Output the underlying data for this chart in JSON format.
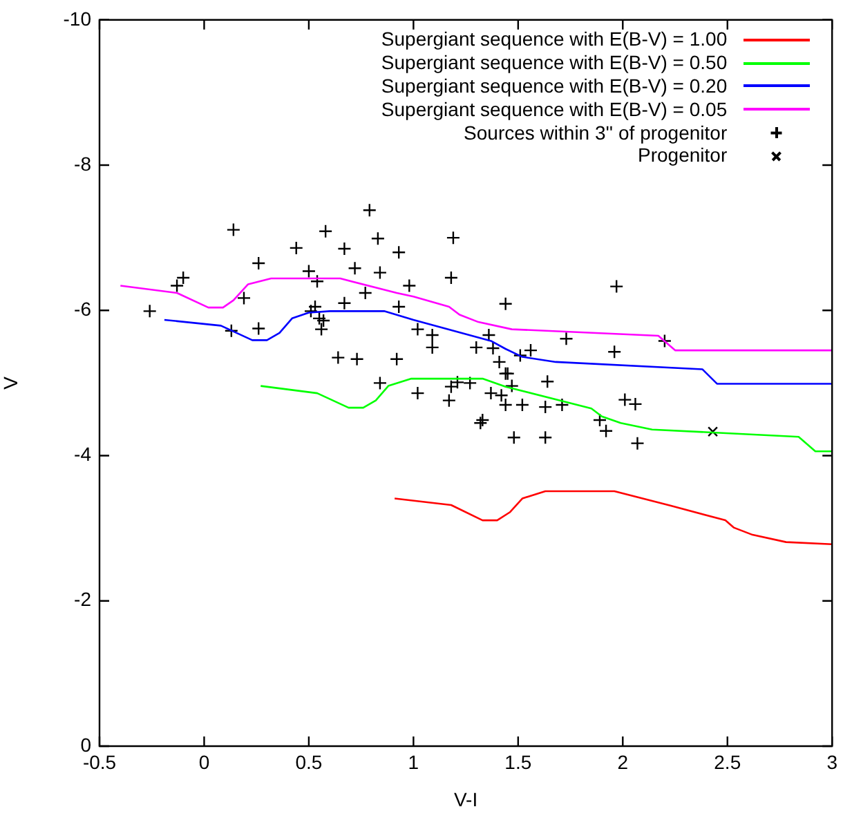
{
  "chart_data": {
    "type": "line",
    "xlabel": "V-I",
    "ylabel": "V",
    "xlim": [
      -0.5,
      3
    ],
    "xticks": [
      -0.5,
      0,
      0.5,
      1,
      1.5,
      2,
      2.5,
      3
    ],
    "ylim": [
      0,
      -10
    ],
    "yticks": [
      0,
      -2,
      -4,
      -6,
      -8,
      -10
    ],
    "grid": false,
    "legend": "top right",
    "series": [
      {
        "name": "Supergiant sequence with E(B-V) = 1.00",
        "type": "line",
        "marker": "none",
        "color": "#ff0000",
        "x": [
          0.91,
          1.18,
          1.33,
          1.4,
          1.46,
          1.52,
          1.63,
          1.96,
          2.23,
          2.49,
          2.53,
          2.62,
          2.78,
          3.0
        ],
        "values": [
          -3.41,
          -3.32,
          -3.11,
          -3.11,
          -3.22,
          -3.41,
          -3.51,
          -3.51,
          -3.31,
          -3.11,
          -3.01,
          -2.91,
          -2.81,
          -2.78
        ]
      },
      {
        "name": "Supergiant sequence with E(B-V) = 0.50",
        "type": "line",
        "marker": "none",
        "color": "#00ff00",
        "x": [
          0.27,
          0.54,
          0.69,
          0.76,
          0.82,
          0.88,
          0.99,
          1.33,
          1.44,
          1.85,
          1.9,
          1.99,
          2.14,
          2.84,
          2.92,
          3.0
        ],
        "values": [
          -4.96,
          -4.86,
          -4.66,
          -4.66,
          -4.76,
          -4.96,
          -5.06,
          -5.06,
          -4.95,
          -4.65,
          -4.54,
          -4.45,
          -4.36,
          -4.26,
          -4.06,
          -4.06
        ]
      },
      {
        "name": "Supergiant sequence with E(B-V) = 0.20",
        "type": "line",
        "marker": "none",
        "color": "#0000ff",
        "x": [
          -0.19,
          0.08,
          0.23,
          0.3,
          0.36,
          0.42,
          0.5,
          0.6,
          0.86,
          1.0,
          1.37,
          1.44,
          1.52,
          1.68,
          2.38,
          2.45,
          3.0
        ],
        "values": [
          -5.87,
          -5.79,
          -5.59,
          -5.59,
          -5.69,
          -5.89,
          -5.97,
          -5.99,
          -5.99,
          -5.87,
          -5.58,
          -5.47,
          -5.36,
          -5.29,
          -5.19,
          -4.99,
          -4.99
        ]
      },
      {
        "name": "Supergiant sequence with E(B-V) = 0.05",
        "type": "line",
        "marker": "none",
        "color": "#ff00ff",
        "x": [
          -0.4,
          -0.13,
          0.02,
          0.09,
          0.14,
          0.21,
          0.32,
          0.65,
          0.92,
          1.0,
          1.17,
          1.22,
          1.31,
          1.47,
          2.17,
          2.25,
          3.0
        ],
        "values": [
          -6.34,
          -6.24,
          -6.04,
          -6.04,
          -6.14,
          -6.36,
          -6.44,
          -6.44,
          -6.24,
          -6.19,
          -6.05,
          -5.94,
          -5.84,
          -5.74,
          -5.65,
          -5.45,
          -5.45
        ]
      },
      {
        "name": "Sources within 3'' of progenitor",
        "type": "scatter",
        "marker": "cross",
        "color": "#000000",
        "x": [
          -0.26,
          -0.13,
          -0.1,
          0.14,
          0.19,
          0.13,
          0.26,
          0.26,
          0.44,
          0.5,
          0.54,
          0.53,
          0.51,
          0.55,
          0.57,
          0.56,
          0.58,
          0.67,
          0.72,
          0.67,
          0.77,
          0.79,
          0.83,
          0.84,
          0.93,
          0.98,
          0.93,
          0.64,
          0.73,
          0.92,
          0.84,
          1.02,
          1.02,
          1.09,
          1.09,
          1.19,
          1.18,
          1.18,
          1.21,
          1.27,
          1.17,
          1.33,
          1.32,
          1.36,
          1.3,
          1.38,
          1.41,
          1.44,
          1.45,
          1.47,
          1.37,
          1.42,
          1.44,
          1.52,
          1.51,
          1.56,
          1.44,
          1.48,
          1.63,
          1.63,
          1.64,
          1.71,
          1.73,
          1.97,
          1.96,
          2.01,
          2.06,
          1.89,
          1.92,
          2.07,
          2.2
        ],
        "values": [
          -5.99,
          -6.34,
          -6.45,
          -7.11,
          -6.17,
          -5.72,
          -6.65,
          -5.75,
          -6.86,
          -6.54,
          -6.4,
          -6.05,
          -5.99,
          -5.89,
          -5.86,
          -5.74,
          -7.09,
          -6.85,
          -6.58,
          -6.1,
          -6.24,
          -7.38,
          -6.99,
          -6.52,
          -6.8,
          -6.34,
          -6.05,
          -5.35,
          -5.33,
          -5.33,
          -5.0,
          -4.86,
          -5.74,
          -5.66,
          -5.49,
          -7.0,
          -6.45,
          -4.95,
          -5.01,
          -5.0,
          -4.76,
          -4.49,
          -4.45,
          -5.66,
          -5.49,
          -5.48,
          -5.29,
          -5.13,
          -5.13,
          -4.96,
          -4.86,
          -4.83,
          -4.7,
          -4.7,
          -5.38,
          -5.45,
          -6.09,
          -4.25,
          -4.25,
          -4.67,
          -5.02,
          -4.7,
          -5.61,
          -6.33,
          -5.43,
          -4.77,
          -4.71,
          -4.49,
          -4.34,
          -4.17,
          -5.58
        ]
      },
      {
        "name": "Progenitor",
        "type": "scatter",
        "marker": "x",
        "color": "#000000",
        "x": [
          2.43
        ],
        "values": [
          -4.33
        ]
      }
    ]
  }
}
